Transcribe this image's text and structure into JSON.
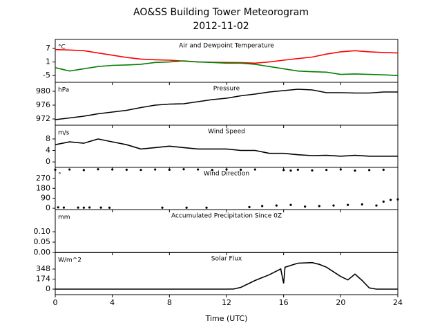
{
  "figure": {
    "title": "AO&SS Building Tower Meteorogram",
    "subtitle": "2012-11-02",
    "xlabel": "Time (UTC)"
  },
  "chart_data": [
    {
      "type": "line",
      "title": "Air and Dewpoint Temperature",
      "units": "°C",
      "x": [
        0,
        1,
        2,
        3,
        4,
        5,
        6,
        7,
        8,
        9,
        10,
        11,
        12,
        13,
        14,
        15,
        16,
        17,
        18,
        19,
        20,
        21,
        22,
        23,
        24
      ],
      "series": [
        {
          "color": "#ff0000",
          "values": [
            6.5,
            6.3,
            6,
            5,
            4,
            3,
            2.3,
            2,
            1.8,
            1.4,
            1,
            0.9,
            0.8,
            0.7,
            0.5,
            1,
            1.8,
            2.5,
            3.2,
            4.5,
            5.5,
            6,
            5.5,
            5.2,
            5
          ]
        },
        {
          "color": "#008000",
          "values": [
            -1.5,
            -3,
            -2,
            -1,
            -0.5,
            -0.3,
            0,
            0.8,
            1,
            1.5,
            1,
            0.8,
            0.5,
            0.5,
            0,
            -1,
            -2,
            -3,
            -3.3,
            -3.5,
            -4.5,
            -4.3,
            -4.5,
            -4.7,
            -5
          ]
        }
      ],
      "xlim": [
        0,
        24
      ],
      "xticks": [
        0,
        4,
        8,
        12,
        16,
        20,
        24
      ],
      "ylim": [
        -8,
        11
      ],
      "yticks": [
        7,
        1,
        -5
      ]
    },
    {
      "type": "line",
      "title": "Pressure",
      "units": "hPa",
      "x": [
        0,
        1,
        2,
        3,
        4,
        5,
        6,
        7,
        8,
        9,
        10,
        11,
        12,
        13,
        14,
        15,
        16,
        17,
        18,
        19,
        20,
        21,
        22,
        23,
        24
      ],
      "series": [
        {
          "color": "#000000",
          "values": [
            971.8,
            972.3,
            972.8,
            973.5,
            974,
            974.5,
            975.3,
            976,
            976.3,
            976.4,
            977,
            977.6,
            978,
            978.7,
            979.2,
            979.8,
            980.2,
            980.6,
            980.4,
            979.6,
            979.6,
            979.5,
            979.5,
            979.8,
            979.8
          ]
        }
      ],
      "xlim": [
        0,
        24
      ],
      "xticks": [
        0,
        4,
        8,
        12,
        16,
        20,
        24
      ],
      "ylim": [
        970.2,
        982.6
      ],
      "yticks": [
        980,
        976,
        972
      ]
    },
    {
      "type": "line",
      "title": "Wind Speed",
      "units": "m/s",
      "x": [
        0,
        1,
        2,
        3,
        4,
        5,
        6,
        7,
        8,
        9,
        10,
        11,
        12,
        13,
        14,
        15,
        16,
        17,
        18,
        19,
        20,
        21,
        22,
        23,
        24
      ],
      "series": [
        {
          "color": "#000000",
          "values": [
            6,
            7,
            6.5,
            8,
            7,
            6,
            4.5,
            5,
            5.5,
            5,
            4.5,
            4.5,
            4.5,
            4,
            4,
            3,
            3,
            2.5,
            2.2,
            2.3,
            2,
            2.3,
            2,
            2,
            2
          ]
        }
      ],
      "xlim": [
        0,
        24
      ],
      "xticks": [
        0,
        4,
        8,
        12,
        16,
        20,
        24
      ],
      "ylim": [
        -1.9,
        12.8
      ],
      "yticks": [
        8,
        4,
        0
      ]
    },
    {
      "type": "scatter",
      "title": "Wind Direction",
      "units": "°",
      "x": [
        0,
        1,
        2,
        3,
        4,
        5,
        6,
        7,
        8,
        9,
        10,
        11,
        12,
        13,
        14,
        16,
        16.5,
        17,
        18,
        19,
        20,
        21,
        22,
        23,
        0.2,
        0.6,
        1.6,
        2,
        2.4,
        3.2,
        3.8,
        7.5,
        9.2,
        10.6,
        13.6,
        14.5,
        15.5,
        16.5,
        17.5,
        18.5,
        19.5,
        20.5,
        21.5,
        22.5,
        23,
        23.5,
        24
      ],
      "series": [
        {
          "color": "#000000",
          "values": [
            348,
            350,
            345,
            352,
            350,
            348,
            346,
            350,
            348,
            352,
            350,
            346,
            350,
            348,
            350,
            345,
            340,
            348,
            342,
            346,
            350,
            340,
            345,
            348,
            8,
            6,
            6,
            5,
            7,
            6,
            5,
            5,
            5,
            5,
            10,
            20,
            25,
            30,
            15,
            20,
            25,
            30,
            35,
            25,
            60,
            75,
            80
          ]
        }
      ],
      "xlim": [
        0,
        24
      ],
      "xticks": [
        0,
        4,
        8,
        12,
        16,
        20,
        24
      ],
      "ylim": [
        -12,
        369
      ],
      "yticks": [
        270,
        180,
        90,
        0
      ]
    },
    {
      "type": "line",
      "title": "Accumulated Precipitation Since 0Z",
      "units": "mm",
      "x": [
        0,
        24
      ],
      "series": [
        {
          "color": "#000000",
          "values": [
            0,
            0
          ]
        }
      ],
      "xlim": [
        0,
        24
      ],
      "xticks": [
        0,
        4,
        8,
        12,
        16,
        20,
        24
      ],
      "ylim": [
        0,
        0.207
      ],
      "yticks": [
        {
          "value": 0.1,
          "label": "0.10"
        },
        {
          "value": 0.05,
          "label": "0.05"
        },
        {
          "value": 0,
          "label": "0.00"
        }
      ]
    },
    {
      "type": "line",
      "title": "Solar Flux",
      "units": "W/m^2",
      "x": [
        0,
        12,
        12.5,
        13,
        14,
        15,
        15.8,
        16,
        16.1,
        17,
        18,
        18.5,
        19,
        20,
        20.5,
        21,
        21.5,
        22,
        22.5,
        24
      ],
      "series": [
        {
          "color": "#000000",
          "values": [
            0,
            0,
            2,
            30,
            150,
            250,
            350,
            100,
            380,
            450,
            460,
            430,
            380,
            220,
            160,
            260,
            150,
            20,
            0,
            0
          ]
        }
      ],
      "xlim": [
        0,
        24
      ],
      "xticks": [
        0,
        4,
        8,
        12,
        16,
        20,
        24
      ],
      "ylim": [
        -96,
        636
      ],
      "yticks": [
        348,
        174,
        0
      ]
    }
  ]
}
